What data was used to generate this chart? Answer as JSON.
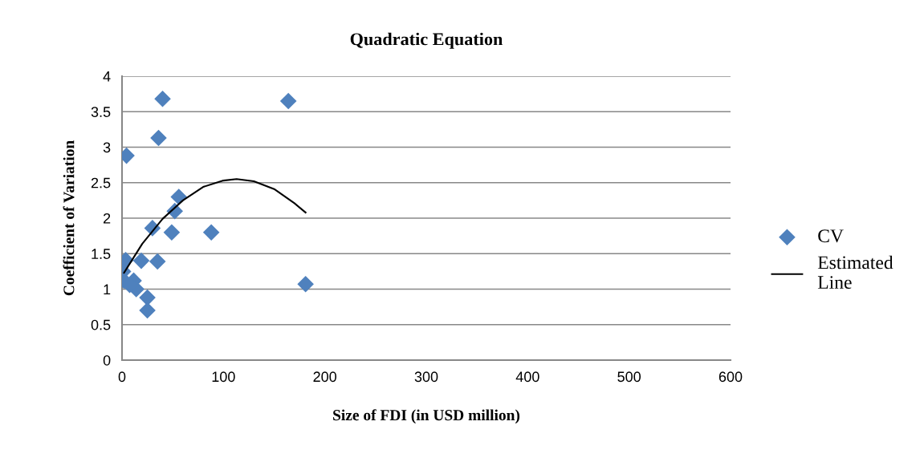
{
  "chart_data": {
    "type": "scatter",
    "title": "Quadratic Equation",
    "xlabel": "Size of FDI (in USD million)",
    "ylabel": "Coefficient of Variation",
    "xlim": [
      0,
      600
    ],
    "xticks": [
      0,
      100,
      200,
      300,
      400,
      500,
      600
    ],
    "ylim": [
      0,
      4
    ],
    "yticks": [
      0,
      0.5,
      1,
      1.5,
      2,
      2.5,
      3,
      3.5,
      4
    ],
    "grid": "y",
    "legend": "right",
    "series": [
      {
        "name": "CV",
        "marker": "diamond",
        "color": "#4f81bd",
        "x": [
          40,
          164,
          36,
          4.4,
          56,
          52,
          30,
          49,
          88,
          19,
          35,
          3.6,
          1,
          2,
          11.5,
          14,
          7.5,
          25,
          25,
          181
        ],
        "values": [
          3.68,
          3.65,
          3.13,
          2.88,
          2.3,
          2.1,
          1.86,
          1.8,
          1.8,
          1.4,
          1.39,
          1.41,
          1.25,
          1.12,
          1.12,
          1.0,
          1.06,
          0.88,
          0.7,
          1.07
        ]
      },
      {
        "name": "Estimated Line",
        "type": "line",
        "color": "#000000",
        "x": [
          2,
          20,
          40,
          60,
          80,
          100,
          113,
          130,
          150,
          170,
          181
        ],
        "values": [
          1.23,
          1.64,
          1.99,
          2.25,
          2.44,
          2.53,
          2.55,
          2.52,
          2.41,
          2.21,
          2.08
        ]
      }
    ]
  }
}
